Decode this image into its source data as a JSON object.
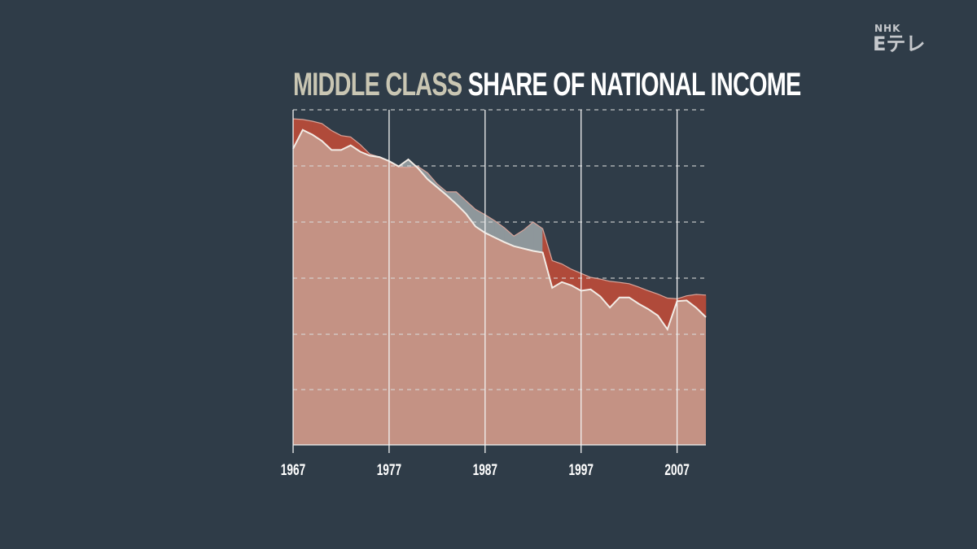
{
  "title": {
    "part1": "MIDDLE CLASS",
    "part2": "SHARE OF NATIONAL INCOME"
  },
  "logo": {
    "brand": "NHK",
    "channel": "Eテレ"
  },
  "colors": {
    "background": "#2f3c48",
    "area_fill": "#c49284",
    "gap_red": "#b04a3a",
    "gap_gray": "#8e979b",
    "line": "#f2ece6",
    "grid": "#d9d9d9"
  },
  "chart_data": {
    "type": "area",
    "title": "MIDDLE CLASS SHARE OF NATIONAL INCOME",
    "xlabel": "",
    "ylabel": "",
    "x_ticks": [
      "1967",
      "1977",
      "1987",
      "1997",
      "2007"
    ],
    "xlim": [
      1967,
      2010
    ],
    "grid": "horizontal dashed, vertical solid at ticks",
    "series": [
      {
        "values": [
          {
            "x": 1967,
            "y": 0.884
          },
          {
            "x": 1968,
            "y": 0.94
          },
          {
            "x": 1969,
            "y": 0.926
          },
          {
            "x": 1970,
            "y": 0.907
          },
          {
            "x": 1971,
            "y": 0.88
          },
          {
            "x": 1972,
            "y": 0.88
          },
          {
            "x": 1973,
            "y": 0.894
          },
          {
            "x": 1974,
            "y": 0.875
          },
          {
            "x": 1975,
            "y": 0.863
          },
          {
            "x": 1976,
            "y": 0.859
          },
          {
            "x": 1977,
            "y": 0.847
          },
          {
            "x": 1978,
            "y": 0.831
          },
          {
            "x": 1979,
            "y": 0.852
          },
          {
            "x": 1980,
            "y": 0.826
          },
          {
            "x": 1981,
            "y": 0.793
          },
          {
            "x": 1982,
            "y": 0.769
          },
          {
            "x": 1983,
            "y": 0.745
          },
          {
            "x": 1984,
            "y": 0.719
          },
          {
            "x": 1985,
            "y": 0.69
          },
          {
            "x": 1986,
            "y": 0.652
          },
          {
            "x": 1987,
            "y": 0.633
          },
          {
            "x": 1988,
            "y": 0.619
          },
          {
            "x": 1989,
            "y": 0.605
          },
          {
            "x": 1990,
            "y": 0.593
          },
          {
            "x": 1991,
            "y": 0.586
          },
          {
            "x": 1992,
            "y": 0.579
          },
          {
            "x": 1993,
            "y": 0.574
          },
          {
            "x": 1994,
            "y": 0.469
          },
          {
            "x": 1995,
            "y": 0.486
          },
          {
            "x": 1996,
            "y": 0.476
          },
          {
            "x": 1997,
            "y": 0.46
          },
          {
            "x": 1998,
            "y": 0.464
          },
          {
            "x": 1999,
            "y": 0.443
          },
          {
            "x": 2000,
            "y": 0.41
          },
          {
            "x": 2001,
            "y": 0.44
          },
          {
            "x": 2002,
            "y": 0.44
          },
          {
            "x": 2003,
            "y": 0.421
          },
          {
            "x": 2004,
            "y": 0.405
          },
          {
            "x": 2005,
            "y": 0.386
          },
          {
            "x": 2006,
            "y": 0.345
          },
          {
            "x": 2007,
            "y": 0.429
          },
          {
            "x": 2008,
            "y": 0.431
          },
          {
            "x": 2009,
            "y": 0.409
          },
          {
            "x": 2010,
            "y": 0.381
          }
        ]
      },
      {
        "values": [
          {
            "x": 1967,
            "y": 0.973
          },
          {
            "x": 1968,
            "y": 0.971
          },
          {
            "x": 1969,
            "y": 0.966
          },
          {
            "x": 1970,
            "y": 0.959
          },
          {
            "x": 1971,
            "y": 0.938
          },
          {
            "x": 1972,
            "y": 0.923
          },
          {
            "x": 1973,
            "y": 0.919
          },
          {
            "x": 1974,
            "y": 0.896
          },
          {
            "x": 1975,
            "y": 0.868
          },
          {
            "x": 1976,
            "y": 0.859
          },
          {
            "x": 1977,
            "y": 0.845
          },
          {
            "x": 1978,
            "y": 0.829
          },
          {
            "x": 1979,
            "y": 0.828
          },
          {
            "x": 1980,
            "y": 0.831
          },
          {
            "x": 1981,
            "y": 0.812
          },
          {
            "x": 1982,
            "y": 0.779
          },
          {
            "x": 1983,
            "y": 0.755
          },
          {
            "x": 1984,
            "y": 0.755
          },
          {
            "x": 1985,
            "y": 0.729
          },
          {
            "x": 1986,
            "y": 0.703
          },
          {
            "x": 1987,
            "y": 0.687
          },
          {
            "x": 1988,
            "y": 0.669
          },
          {
            "x": 1989,
            "y": 0.648
          },
          {
            "x": 1990,
            "y": 0.623
          },
          {
            "x": 1991,
            "y": 0.641
          },
          {
            "x": 1992,
            "y": 0.665
          },
          {
            "x": 1993,
            "y": 0.645
          },
          {
            "x": 1994,
            "y": 0.55
          },
          {
            "x": 1995,
            "y": 0.54
          },
          {
            "x": 1996,
            "y": 0.524
          },
          {
            "x": 1997,
            "y": 0.512
          },
          {
            "x": 1998,
            "y": 0.5
          },
          {
            "x": 1999,
            "y": 0.495
          },
          {
            "x": 2000,
            "y": 0.488
          },
          {
            "x": 2001,
            "y": 0.485
          },
          {
            "x": 2002,
            "y": 0.481
          },
          {
            "x": 2003,
            "y": 0.471
          },
          {
            "x": 2004,
            "y": 0.46
          },
          {
            "x": 2005,
            "y": 0.45
          },
          {
            "x": 2006,
            "y": 0.438
          },
          {
            "x": 2007,
            "y": 0.436
          },
          {
            "x": 2008,
            "y": 0.445
          },
          {
            "x": 2009,
            "y": 0.449
          },
          {
            "x": 2010,
            "y": 0.447
          }
        ]
      }
    ]
  }
}
